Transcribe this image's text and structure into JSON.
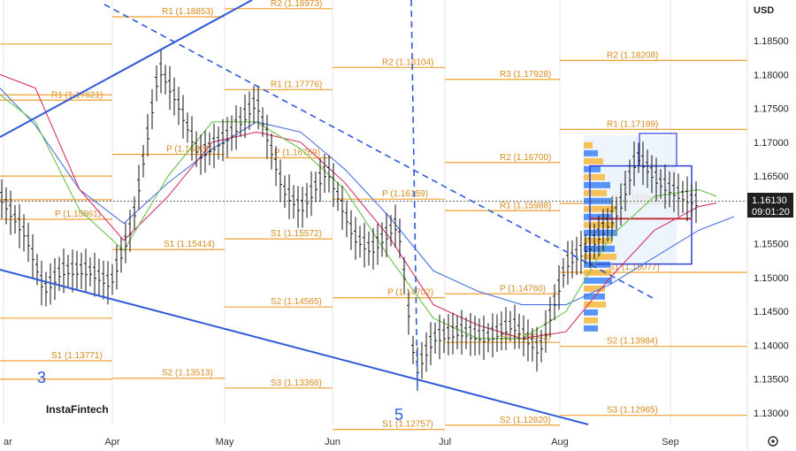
{
  "currency": "USD",
  "logo": "InstaFintech",
  "settings_icon": "gear-icon",
  "colors": {
    "pivot": "#f0a030",
    "pivot_text": "#d98a1a",
    "trend": "#2f5bd8",
    "ma_blue": "#4a6fe3",
    "ma_pink": "#d6336c",
    "ma_green": "#6cc24a",
    "price_tag": "#1f1f1f"
  },
  "price_tag": {
    "price": "1.16130",
    "countdown": "09:01:20"
  },
  "wave_labels": [
    "3",
    "5"
  ],
  "chart_data": {
    "type": "bar",
    "instrument_currency": "USD",
    "x_month_labels": [
      "ar",
      "Apr",
      "May",
      "Jun",
      "Jul",
      "Aug",
      "Sep"
    ],
    "y_ticks": [
      "1.18500",
      "1.18000",
      "1.17500",
      "1.17000",
      "1.16500",
      "1.16000",
      "1.15500",
      "1.15000",
      "1.14500",
      "1.14000",
      "1.13500",
      "1.13000"
    ],
    "ylim": [
      1.1265,
      1.1898
    ],
    "current_price": 1.1613,
    "pivot_levels": [
      {
        "label": "R1 (1.18853)",
        "value": 1.18853
      },
      {
        "label": "R2 (1.18973)",
        "value": 1.18973
      },
      {
        "label": "R2 (1.18104)",
        "value": 1.18104
      },
      {
        "label": "R2 (1.18208)",
        "value": 1.18208
      },
      {
        "label": "R3 (1.17928)",
        "value": 1.17928
      },
      {
        "label": "R1 (1.17776)",
        "value": 1.17776
      },
      {
        "label": "R1 (1.17621)",
        "value": 1.17621
      },
      {
        "label": "R1 (1.17189)",
        "value": 1.17189
      },
      {
        "label": "P (1.16769)",
        "value": 1.16769
      },
      {
        "label": "R2 (1.16700)",
        "value": 1.167
      },
      {
        "label": "P (1.16159)",
        "value": 1.16159
      },
      {
        "label": "P (1.16096)",
        "value": 1.16096
      },
      {
        "label": "R1 (1.15988)",
        "value": 1.15988
      },
      {
        "label": "P (1.15861)",
        "value": 1.15861
      },
      {
        "label": "S1 (1.15572)",
        "value": 1.15572
      },
      {
        "label": "S1 (1.15414)",
        "value": 1.15414
      },
      {
        "label": "S1 (1.15077)",
        "value": 1.15077
      },
      {
        "label": "P (1.14760)",
        "value": 1.1476
      },
      {
        "label": "P (1.14702)",
        "value": 1.14702
      },
      {
        "label": "S2 (1.14565)",
        "value": 1.14565
      },
      {
        "label": "S1 (1.14043)",
        "value": 1.14043
      },
      {
        "label": "S2 (1.13984)",
        "value": 1.13984
      },
      {
        "label": "S1 (1.13771)",
        "value": 1.13771
      },
      {
        "label": "S2 (1.13513)",
        "value": 1.13513
      },
      {
        "label": "S3 (1.13368)",
        "value": 1.13368
      },
      {
        "label": "S3 (1.12965)",
        "value": 1.12965
      },
      {
        "label": "S2 (1.12820)",
        "value": 1.1282
      },
      {
        "label": "S1 (1.12757)",
        "value": 1.12757
      },
      {
        "label": "P (1.16821)",
        "value": 1.16821
      }
    ]
  }
}
